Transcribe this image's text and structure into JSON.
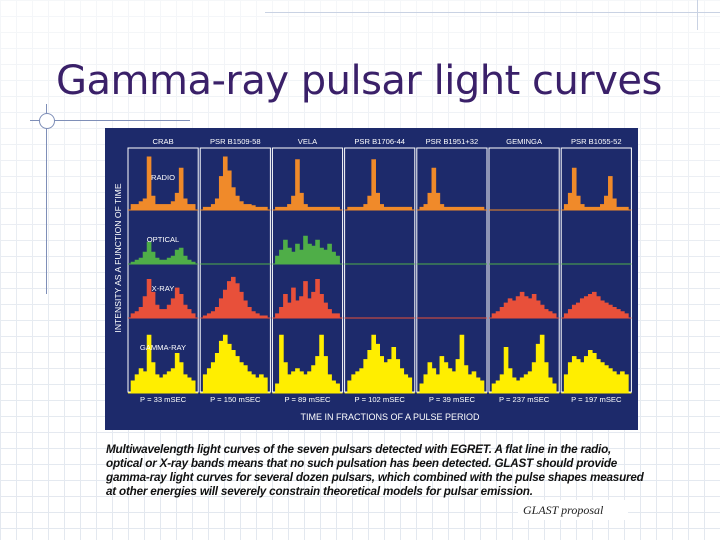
{
  "slide": {
    "title": "Gamma-ray pulsar light curves",
    "caption": "Multiwavelength light curves of the seven pulsars detected with EGRET. A flat line in the radio, optical or X-ray bands means that no such pulsation has been detected. GLAST should provide gamma-ray light curves for several dozen pulsars, which combined with the pulse shapes measured at other energies will severely constrain theoretical models for pulsar emission.",
    "credit": "GLAST proposal"
  },
  "figure": {
    "y_axis_label": "INTENSITY AS A FUNCTION OF TIME",
    "x_axis_label": "TIME IN FRACTIONS OF A PULSE PERIOD",
    "bands": [
      {
        "key": "radio",
        "label": "RADIO",
        "color": "#f08a2a"
      },
      {
        "key": "optical",
        "label": "OPTICAL",
        "color": "#4fae48"
      },
      {
        "key": "xray",
        "label": "X-RAY",
        "color": "#e8503a"
      },
      {
        "key": "gamma",
        "label": "GAMMA-RAY",
        "color": "#ffee00"
      }
    ],
    "pulsars": [
      {
        "name": "CRAB",
        "period": "P = 33 mSEC",
        "radio": [
          0.1,
          0.1,
          0.15,
          0.2,
          0.95,
          0.25,
          0.1,
          0.1,
          0.1,
          0.1,
          0.15,
          0.3,
          0.75,
          0.2,
          0.1,
          0.1
        ],
        "optical": [
          0.05,
          0.1,
          0.15,
          0.3,
          0.55,
          0.3,
          0.15,
          0.1,
          0.1,
          0.15,
          0.2,
          0.35,
          0.4,
          0.2,
          0.1,
          0.05
        ],
        "xray": [
          0.1,
          0.15,
          0.25,
          0.5,
          0.9,
          0.6,
          0.3,
          0.2,
          0.2,
          0.3,
          0.45,
          0.7,
          0.55,
          0.3,
          0.2,
          0.1
        ],
        "gamma": [
          0.2,
          0.3,
          0.4,
          0.35,
          0.95,
          0.5,
          0.3,
          0.25,
          0.3,
          0.35,
          0.4,
          0.65,
          0.5,
          0.3,
          0.25,
          0.2
        ]
      },
      {
        "name": "PSR B1509-58",
        "period": "P = 150 mSEC",
        "radio": [
          0.05,
          0.05,
          0.1,
          0.2,
          0.6,
          0.95,
          0.7,
          0.4,
          0.25,
          0.15,
          0.1,
          0.1,
          0.08,
          0.05,
          0.05,
          0.05
        ],
        "optical": null,
        "xray": [
          0.05,
          0.1,
          0.15,
          0.25,
          0.45,
          0.65,
          0.85,
          0.95,
          0.8,
          0.6,
          0.4,
          0.25,
          0.15,
          0.1,
          0.05,
          0.05
        ],
        "gamma": [
          0.3,
          0.4,
          0.5,
          0.65,
          0.85,
          0.95,
          0.8,
          0.7,
          0.6,
          0.5,
          0.45,
          0.35,
          0.3,
          0.25,
          0.3,
          0.25
        ]
      },
      {
        "name": "VELA",
        "period": "P = 89 mSEC",
        "radio": [
          0.05,
          0.05,
          0.05,
          0.1,
          0.25,
          0.9,
          0.3,
          0.1,
          0.05,
          0.05,
          0.05,
          0.05,
          0.05,
          0.05,
          0.05,
          0.05
        ],
        "optical": [
          0.2,
          0.35,
          0.6,
          0.4,
          0.3,
          0.5,
          0.35,
          0.7,
          0.5,
          0.45,
          0.6,
          0.4,
          0.35,
          0.5,
          0.3,
          0.2
        ],
        "xray": [
          0.1,
          0.25,
          0.55,
          0.35,
          0.7,
          0.4,
          0.5,
          0.85,
          0.45,
          0.6,
          0.9,
          0.55,
          0.35,
          0.2,
          0.1,
          0.1
        ],
        "gamma": [
          0.15,
          0.95,
          0.5,
          0.3,
          0.35,
          0.4,
          0.35,
          0.3,
          0.35,
          0.45,
          0.6,
          0.95,
          0.6,
          0.3,
          0.2,
          0.15
        ]
      },
      {
        "name": "PSR B1706-44",
        "period": "P = 102 mSEC",
        "radio": [
          0.05,
          0.05,
          0.05,
          0.05,
          0.1,
          0.25,
          0.9,
          0.3,
          0.1,
          0.05,
          0.05,
          0.05,
          0.05,
          0.05,
          0.05,
          0.05
        ],
        "optical": null,
        "xray": null,
        "gamma": [
          0.2,
          0.3,
          0.35,
          0.4,
          0.55,
          0.7,
          0.95,
          0.8,
          0.6,
          0.5,
          0.55,
          0.75,
          0.55,
          0.4,
          0.3,
          0.25
        ]
      },
      {
        "name": "PSR B1951+32",
        "period": "P = 39 mSEC",
        "radio": [
          0.05,
          0.1,
          0.3,
          0.75,
          0.3,
          0.1,
          0.05,
          0.05,
          0.05,
          0.05,
          0.05,
          0.05,
          0.05,
          0.05,
          0.05,
          0.05
        ],
        "optical": null,
        "xray": null,
        "gamma": [
          0.15,
          0.3,
          0.5,
          0.4,
          0.3,
          0.6,
          0.5,
          0.4,
          0.35,
          0.55,
          0.95,
          0.45,
          0.3,
          0.35,
          0.25,
          0.2
        ]
      },
      {
        "name": "GEMINGA",
        "period": "P = 237 mSEC",
        "radio": null,
        "optical": null,
        "xray": [
          0.1,
          0.15,
          0.25,
          0.35,
          0.45,
          0.4,
          0.5,
          0.6,
          0.5,
          0.45,
          0.55,
          0.4,
          0.3,
          0.2,
          0.15,
          0.1
        ],
        "gamma": [
          0.15,
          0.2,
          0.3,
          0.75,
          0.4,
          0.25,
          0.2,
          0.25,
          0.3,
          0.35,
          0.5,
          0.8,
          0.95,
          0.5,
          0.25,
          0.15
        ]
      },
      {
        "name": "PSR B1055-52",
        "period": "P = 197 mSEC",
        "radio": [
          0.1,
          0.3,
          0.75,
          0.25,
          0.1,
          0.05,
          0.05,
          0.05,
          0.05,
          0.1,
          0.25,
          0.6,
          0.2,
          0.05,
          0.05,
          0.05
        ],
        "optical": null,
        "xray": [
          0.1,
          0.2,
          0.3,
          0.35,
          0.45,
          0.5,
          0.55,
          0.6,
          0.5,
          0.4,
          0.35,
          0.3,
          0.25,
          0.2,
          0.15,
          0.1
        ],
        "gamma": [
          0.3,
          0.5,
          0.6,
          0.55,
          0.5,
          0.6,
          0.7,
          0.65,
          0.55,
          0.5,
          0.45,
          0.4,
          0.35,
          0.3,
          0.35,
          0.3
        ]
      }
    ]
  }
}
